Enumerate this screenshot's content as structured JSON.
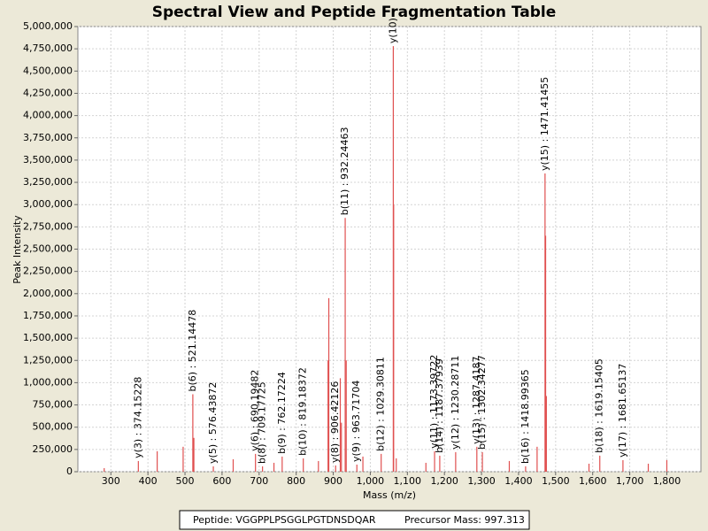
{
  "chart_data": {
    "type": "stem",
    "title": "Spectral View and Peptide Fragmentation Table",
    "xlabel": "Mass (m/z)",
    "ylabel": "Peak Intensity",
    "color": "#e05050",
    "grid": true,
    "xlim": [
      211,
      1892
    ],
    "ylim": [
      0,
      5000000
    ],
    "xticks": [
      300,
      400,
      500,
      600,
      700,
      800,
      900,
      {
        "value": 1000,
        "label": "1,000"
      },
      {
        "value": 1100,
        "label": "1,100"
      },
      {
        "value": 1200,
        "label": "1,200"
      },
      {
        "value": 1300,
        "label": "1,300"
      },
      {
        "value": 1400,
        "label": "1,400"
      },
      {
        "value": 1500,
        "label": "1,500"
      },
      {
        "value": 1600,
        "label": "1,600"
      },
      {
        "value": 1700,
        "label": "1,700"
      },
      {
        "value": 1800,
        "label": "1,800"
      }
    ],
    "yticks": [
      0,
      {
        "value": 250000,
        "label": "250,000"
      },
      {
        "value": 500000,
        "label": "500,000"
      },
      {
        "value": 750000,
        "label": "750,000"
      },
      {
        "value": 1000000,
        "label": "1,000,000"
      },
      {
        "value": 1250000,
        "label": "1,250,000"
      },
      {
        "value": 1500000,
        "label": "1,500,000"
      },
      {
        "value": 1750000,
        "label": "1,750,000"
      },
      {
        "value": 2000000,
        "label": "2,000,000"
      },
      {
        "value": 2250000,
        "label": "2,250,000"
      },
      {
        "value": 2500000,
        "label": "2,500,000"
      },
      {
        "value": 2750000,
        "label": "2,750,000"
      },
      {
        "value": 3000000,
        "label": "3,000,000"
      },
      {
        "value": 3250000,
        "label": "3,250,000"
      },
      {
        "value": 3500000,
        "label": "3,500,000"
      },
      {
        "value": 3750000,
        "label": "3,750,000"
      },
      {
        "value": 4000000,
        "label": "4,000,000"
      },
      {
        "value": 4250000,
        "label": "4,250,000"
      },
      {
        "value": 4500000,
        "label": "4,500,000"
      },
      {
        "value": 4750000,
        "label": "4,750,000"
      },
      {
        "value": 5000000,
        "label": "5,000,000"
      }
    ],
    "x": [
      374.15228,
      521.14478,
      576.43872,
      690.19482,
      709.17725,
      762.17224,
      819.18372,
      906.42126,
      932.24463,
      963.71704,
      1029.30811,
      1062,
      1173.39722,
      1187.37939,
      1230.28711,
      1287.4187,
      1302.34277,
      1418.99365,
      1471.41455,
      1619.15405,
      1681.65137,
      888,
      886,
      1063,
      1473,
      1475,
      935,
      919,
      922,
      524,
      425,
      495,
      1450,
      1375,
      1800,
      1750,
      1150,
      1070,
      980,
      630,
      860,
      740,
      282,
      1590
    ],
    "values": [
      120000,
      870000,
      60000,
      200000,
      60000,
      170000,
      150000,
      70000,
      2850000,
      80000,
      200000,
      4780000,
      230000,
      180000,
      220000,
      280000,
      220000,
      60000,
      3350000,
      180000,
      130000,
      1950000,
      1250000,
      3000000,
      2650000,
      850000,
      1250000,
      1050000,
      550000,
      380000,
      230000,
      280000,
      280000,
      120000,
      130000,
      90000,
      100000,
      150000,
      170000,
      140000,
      120000,
      100000,
      40000,
      90000
    ],
    "peak_labels": [
      "y(3) : 374.15228",
      "b(6) : 521.14478",
      "y(5) : 576.43872",
      "y(6) : 690.19482",
      "b(8) : 709.17725",
      "b(9) : 762.17224",
      "b(10) : 819.18372",
      "y(8) : 906.42126",
      "b(11) : 932.24463",
      "y(9) : 963.71704",
      "b(12) : 1029.30811",
      "y(10)",
      "y(11) : 1173.39722",
      "b(14) : 1187.37939",
      "y(12) : 1230.28711",
      "y(13) : 1287.4187",
      "b(15) : 1302.34277",
      "b(16) : 1418.99365",
      "y(15) : 1471.41455",
      "b(18) : 1619.15405",
      "y(17) : 1681.65137",
      null,
      null,
      null,
      null,
      null,
      null,
      null,
      null,
      null,
      null,
      null,
      null,
      null,
      null,
      null,
      null,
      null,
      null,
      null,
      null,
      null,
      null,
      null
    ],
    "footer": {
      "peptide": "Peptide: VGGPPLPSGGLPGTDNSDQAR",
      "precursor": "Precursor Mass: 997.313"
    }
  }
}
